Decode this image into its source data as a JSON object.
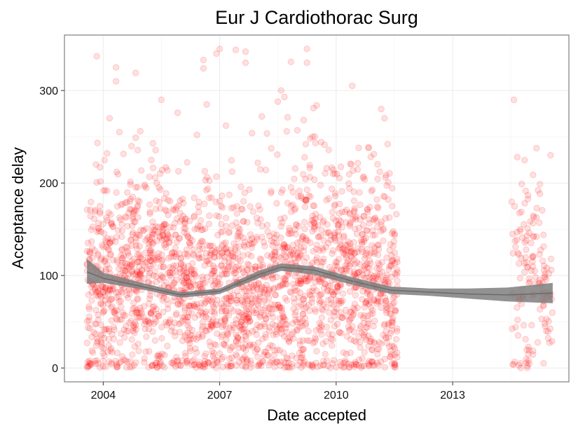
{
  "chart_data": {
    "type": "scatter",
    "title": "Eur J Cardiothorac Surg",
    "xlabel": "Date accepted",
    "ylabel": "Acceptance delay",
    "xlim": [
      "2003-01-01",
      "2015-12-31"
    ],
    "ylim": [
      -15,
      360
    ],
    "x_ticks": [
      "2004-01-01",
      "2007-01-01",
      "2010-01-01",
      "2013-01-01"
    ],
    "x_tick_labels": [
      "2004",
      "2007",
      "2010",
      "2013"
    ],
    "y_ticks": [
      0,
      100,
      200,
      300
    ],
    "y_tick_labels": [
      "0",
      "100",
      "200",
      "300"
    ],
    "grid": true,
    "legend": "none",
    "point_color": "#ff0000",
    "point_alpha": 0.12,
    "smooth_color": "#7f7f7f",
    "series": [
      {
        "kind": "points",
        "points": [
          [
            "2003-08-01",
            112
          ],
          [
            "2003-11-01",
            337
          ],
          [
            "2003-11-01",
            8
          ],
          [
            "2003-12-01",
            217
          ],
          [
            "2003-12-01",
            175
          ],
          [
            "2004-03-01",
            270
          ],
          [
            "2004-05-01",
            325
          ],
          [
            "2004-05-01",
            310
          ],
          [
            "2004-06-01",
            255
          ],
          [
            "2004-11-01",
            319
          ],
          [
            "2004-11-01",
            249
          ],
          [
            "2005-07-01",
            290
          ],
          [
            "2005-12-01",
            276
          ],
          [
            "2006-06-01",
            252
          ],
          [
            "2006-08-01",
            333
          ],
          [
            "2006-08-01",
            324
          ],
          [
            "2006-09-01",
            285
          ],
          [
            "2006-12-01",
            340
          ],
          [
            "2007-01-01",
            345
          ],
          [
            "2007-03-01",
            262
          ],
          [
            "2007-06-01",
            344
          ],
          [
            "2007-09-01",
            342
          ],
          [
            "2007-09-01",
            330
          ],
          [
            "2007-11-01",
            254
          ],
          [
            "2008-02-01",
            272
          ],
          [
            "2008-07-01",
            288
          ],
          [
            "2008-08-01",
            300
          ],
          [
            "2008-09-01",
            293
          ],
          [
            "2008-10-01",
            271
          ],
          [
            "2008-11-01",
            331
          ],
          [
            "2009-01-01",
            257
          ],
          [
            "2009-03-01",
            268
          ],
          [
            "2009-04-01",
            345
          ],
          [
            "2009-04-01",
            330
          ],
          [
            "2009-06-01",
            281
          ],
          [
            "2009-07-01",
            284
          ],
          [
            "2009-05-01",
            248
          ],
          [
            "2010-06-01",
            305
          ],
          [
            "2010-08-01",
            238
          ],
          [
            "2010-11-01",
            238
          ],
          [
            "2011-03-01",
            280
          ],
          [
            "2011-04-01",
            270
          ],
          [
            "2011-05-01",
            242
          ],
          [
            "2014-08-01",
            290
          ],
          [
            "2014-09-01",
            228
          ],
          [
            "2014-10-01",
            150
          ],
          [
            "2014-10-01",
            5
          ],
          [
            "2014-12-01",
            143
          ],
          [
            "2015-03-01",
            142
          ],
          [
            "2015-06-01",
            40
          ]
        ]
      },
      {
        "kind": "smooth",
        "x": [
          "2003-08-01",
          "2004-01-01",
          "2005-01-01",
          "2006-01-01",
          "2007-01-01",
          "2008-01-01",
          "2008-08-01",
          "2009-06-01",
          "2010-06-01",
          "2011-06-01",
          "2012-06-01",
          "2013-06-01",
          "2014-06-01",
          "2015-08-01"
        ],
        "y": [
          104,
          97,
          88,
          79,
          83,
          101,
          109,
          106,
          94,
          84,
          82,
          80,
          79,
          81
        ],
        "band_lower": [
          91,
          92,
          85,
          76,
          80,
          97,
          105,
          101,
          90,
          80,
          78,
          75,
          72,
          70
        ],
        "band_upper": [
          118,
          103,
          92,
          82,
          86,
          105,
          113,
          110,
          98,
          88,
          86,
          86,
          87,
          92
        ]
      }
    ]
  }
}
